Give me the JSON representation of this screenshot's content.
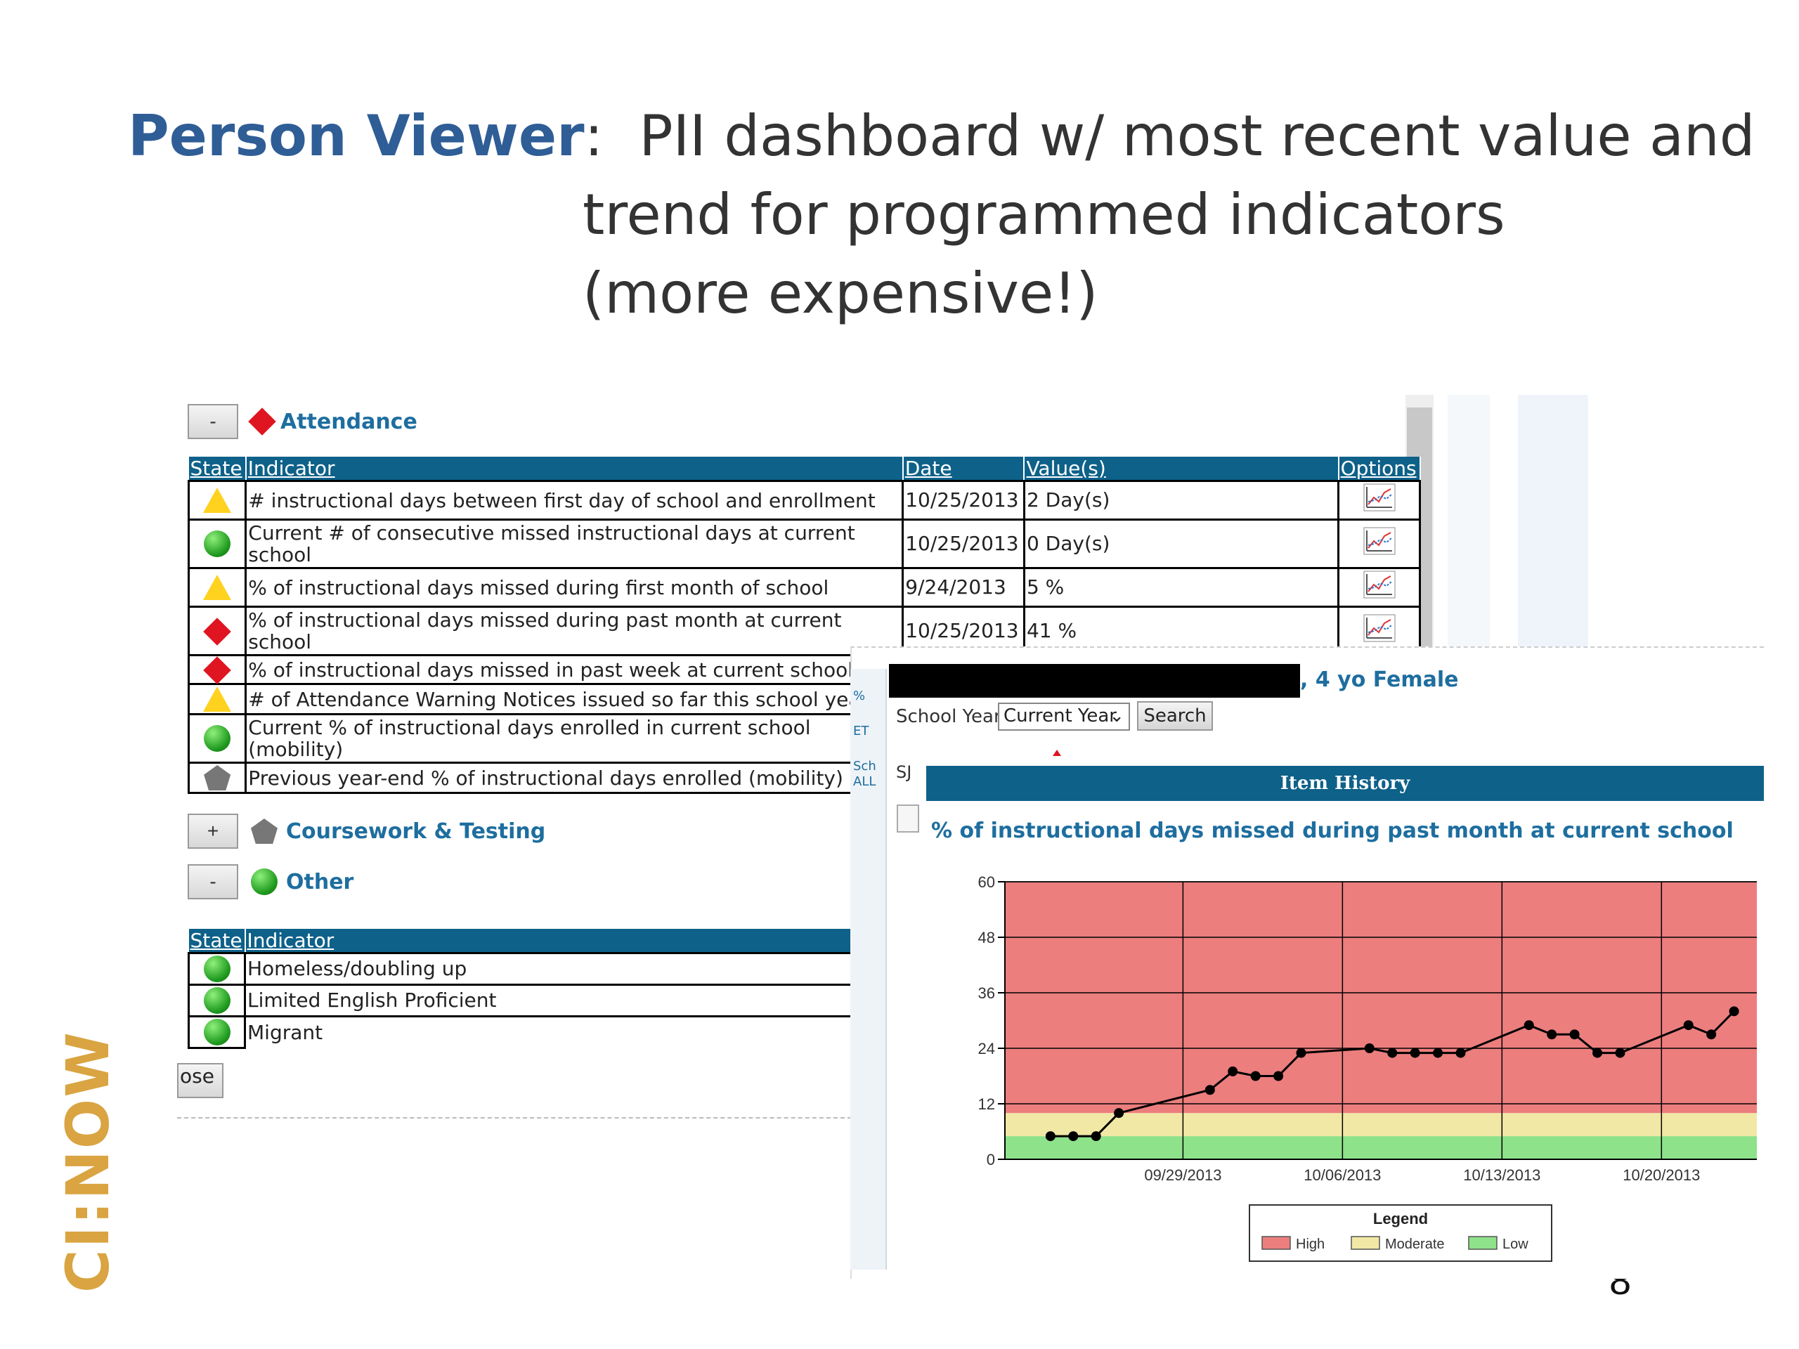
{
  "slide": {
    "title_brand": "Person Viewer",
    "title_colon": ":",
    "title_line1": "PII dashboard w/ most recent value and",
    "title_line2": "trend for programmed indicators",
    "title_line3": "(more expensive!)",
    "page_number": "8",
    "logo_text": "CI:NOW"
  },
  "attendance": {
    "toggle": "-",
    "title": "Attendance",
    "headers": {
      "state": "State",
      "indicator": "Indicator",
      "date": "Date",
      "values": "Value(s)",
      "options": "Options"
    },
    "rows": [
      {
        "state": "yellow-triangle",
        "indicator": "# instructional days between first day of school and enrollment",
        "date": "10/25/2013",
        "value": "2 Day(s)"
      },
      {
        "state": "green-circle",
        "indicator": "Current # of consecutive missed instructional days at current school",
        "date": "10/25/2013",
        "value": "0 Day(s)"
      },
      {
        "state": "yellow-triangle",
        "indicator": "% of instructional days missed during first month of school",
        "date": "9/24/2013",
        "value": "5 %"
      },
      {
        "state": "red-diamond",
        "indicator": "% of instructional days missed during past month at current school",
        "date": "10/25/2013",
        "value": "41 %"
      },
      {
        "state": "red-diamond",
        "indicator": "% of instructional days missed in past week at current school",
        "date": "",
        "value": ""
      },
      {
        "state": "yellow-triangle",
        "indicator": "# of Attendance Warning Notices issued so far this school year",
        "date": "",
        "value": ""
      },
      {
        "state": "green-circle",
        "indicator": "Current % of instructional days enrolled in current school (mobility)",
        "date": "",
        "value": ""
      },
      {
        "state": "gray-pentagon",
        "indicator": "Previous year-end % of instructional days enrolled (mobility)",
        "date": "",
        "value": ""
      }
    ]
  },
  "coursework": {
    "toggle": "+",
    "title": "Coursework & Testing"
  },
  "other": {
    "toggle": "-",
    "title": "Other",
    "headers": {
      "state": "State",
      "indicator": "Indicator"
    },
    "rows": [
      {
        "state": "green-circle",
        "indicator": "Homeless/doubling up"
      },
      {
        "state": "green-circle",
        "indicator": "Limited English Proficient"
      },
      {
        "state": "green-circle",
        "indicator": "Migrant"
      }
    ]
  },
  "close_button": "ose",
  "popup": {
    "patient": ", 4 yo Female",
    "school_year_label": "School Year",
    "school_year_value": "Current Year",
    "search_label": "Search",
    "side_label": "SJ",
    "sidebar_snippets": [
      "%",
      "ET",
      "Sch",
      "ALL"
    ],
    "item_history_title": "Item History",
    "indicator_title": "% of instructional days missed during past month at current school",
    "legend": {
      "title": "Legend",
      "high": "High",
      "moderate": "Moderate",
      "low": "Low"
    }
  },
  "chart_data": {
    "type": "line",
    "title": "% of instructional days missed during past month at current school",
    "x_tick_labels": [
      "09/29/2013",
      "10/06/2013",
      "10/13/2013",
      "10/20/2013"
    ],
    "y_ticks": [
      0,
      12,
      24,
      36,
      48,
      60
    ],
    "ylim": [
      0,
      60
    ],
    "bands": [
      {
        "name": "Low",
        "from": 0,
        "to": 5,
        "color": "#8ee28a"
      },
      {
        "name": "Moderate",
        "from": 5,
        "to": 10,
        "color": "#f1e8a6"
      },
      {
        "name": "High",
        "from": 10,
        "to": 60,
        "color": "#ec7e7e"
      }
    ],
    "series": [
      {
        "points": [
          [
            "2013-09-23",
            5
          ],
          [
            "2013-09-24",
            5
          ],
          [
            "2013-09-25",
            5
          ],
          [
            "2013-09-26",
            10
          ],
          [
            "2013-09-30",
            15
          ],
          [
            "2013-10-01",
            19
          ],
          [
            "2013-10-02",
            18
          ],
          [
            "2013-10-03",
            18
          ],
          [
            "2013-10-04",
            23
          ],
          [
            "2013-10-07",
            24
          ],
          [
            "2013-10-08",
            23
          ],
          [
            "2013-10-09",
            23
          ],
          [
            "2013-10-10",
            23
          ],
          [
            "2013-10-11",
            23
          ],
          [
            "2013-10-14",
            29
          ],
          [
            "2013-10-15",
            27
          ],
          [
            "2013-10-16",
            27
          ],
          [
            "2013-10-17",
            23
          ],
          [
            "2013-10-18",
            23
          ],
          [
            "2013-10-21",
            29
          ],
          [
            "2013-10-22",
            27
          ],
          [
            "2013-10-23",
            32
          ]
        ]
      }
    ],
    "grid": true
  },
  "colors": {
    "brand_blue": "#2f5d96",
    "header_blue": "#0e6189",
    "link_blue": "#1e6e9f",
    "logo_gold": "#d9a441"
  }
}
